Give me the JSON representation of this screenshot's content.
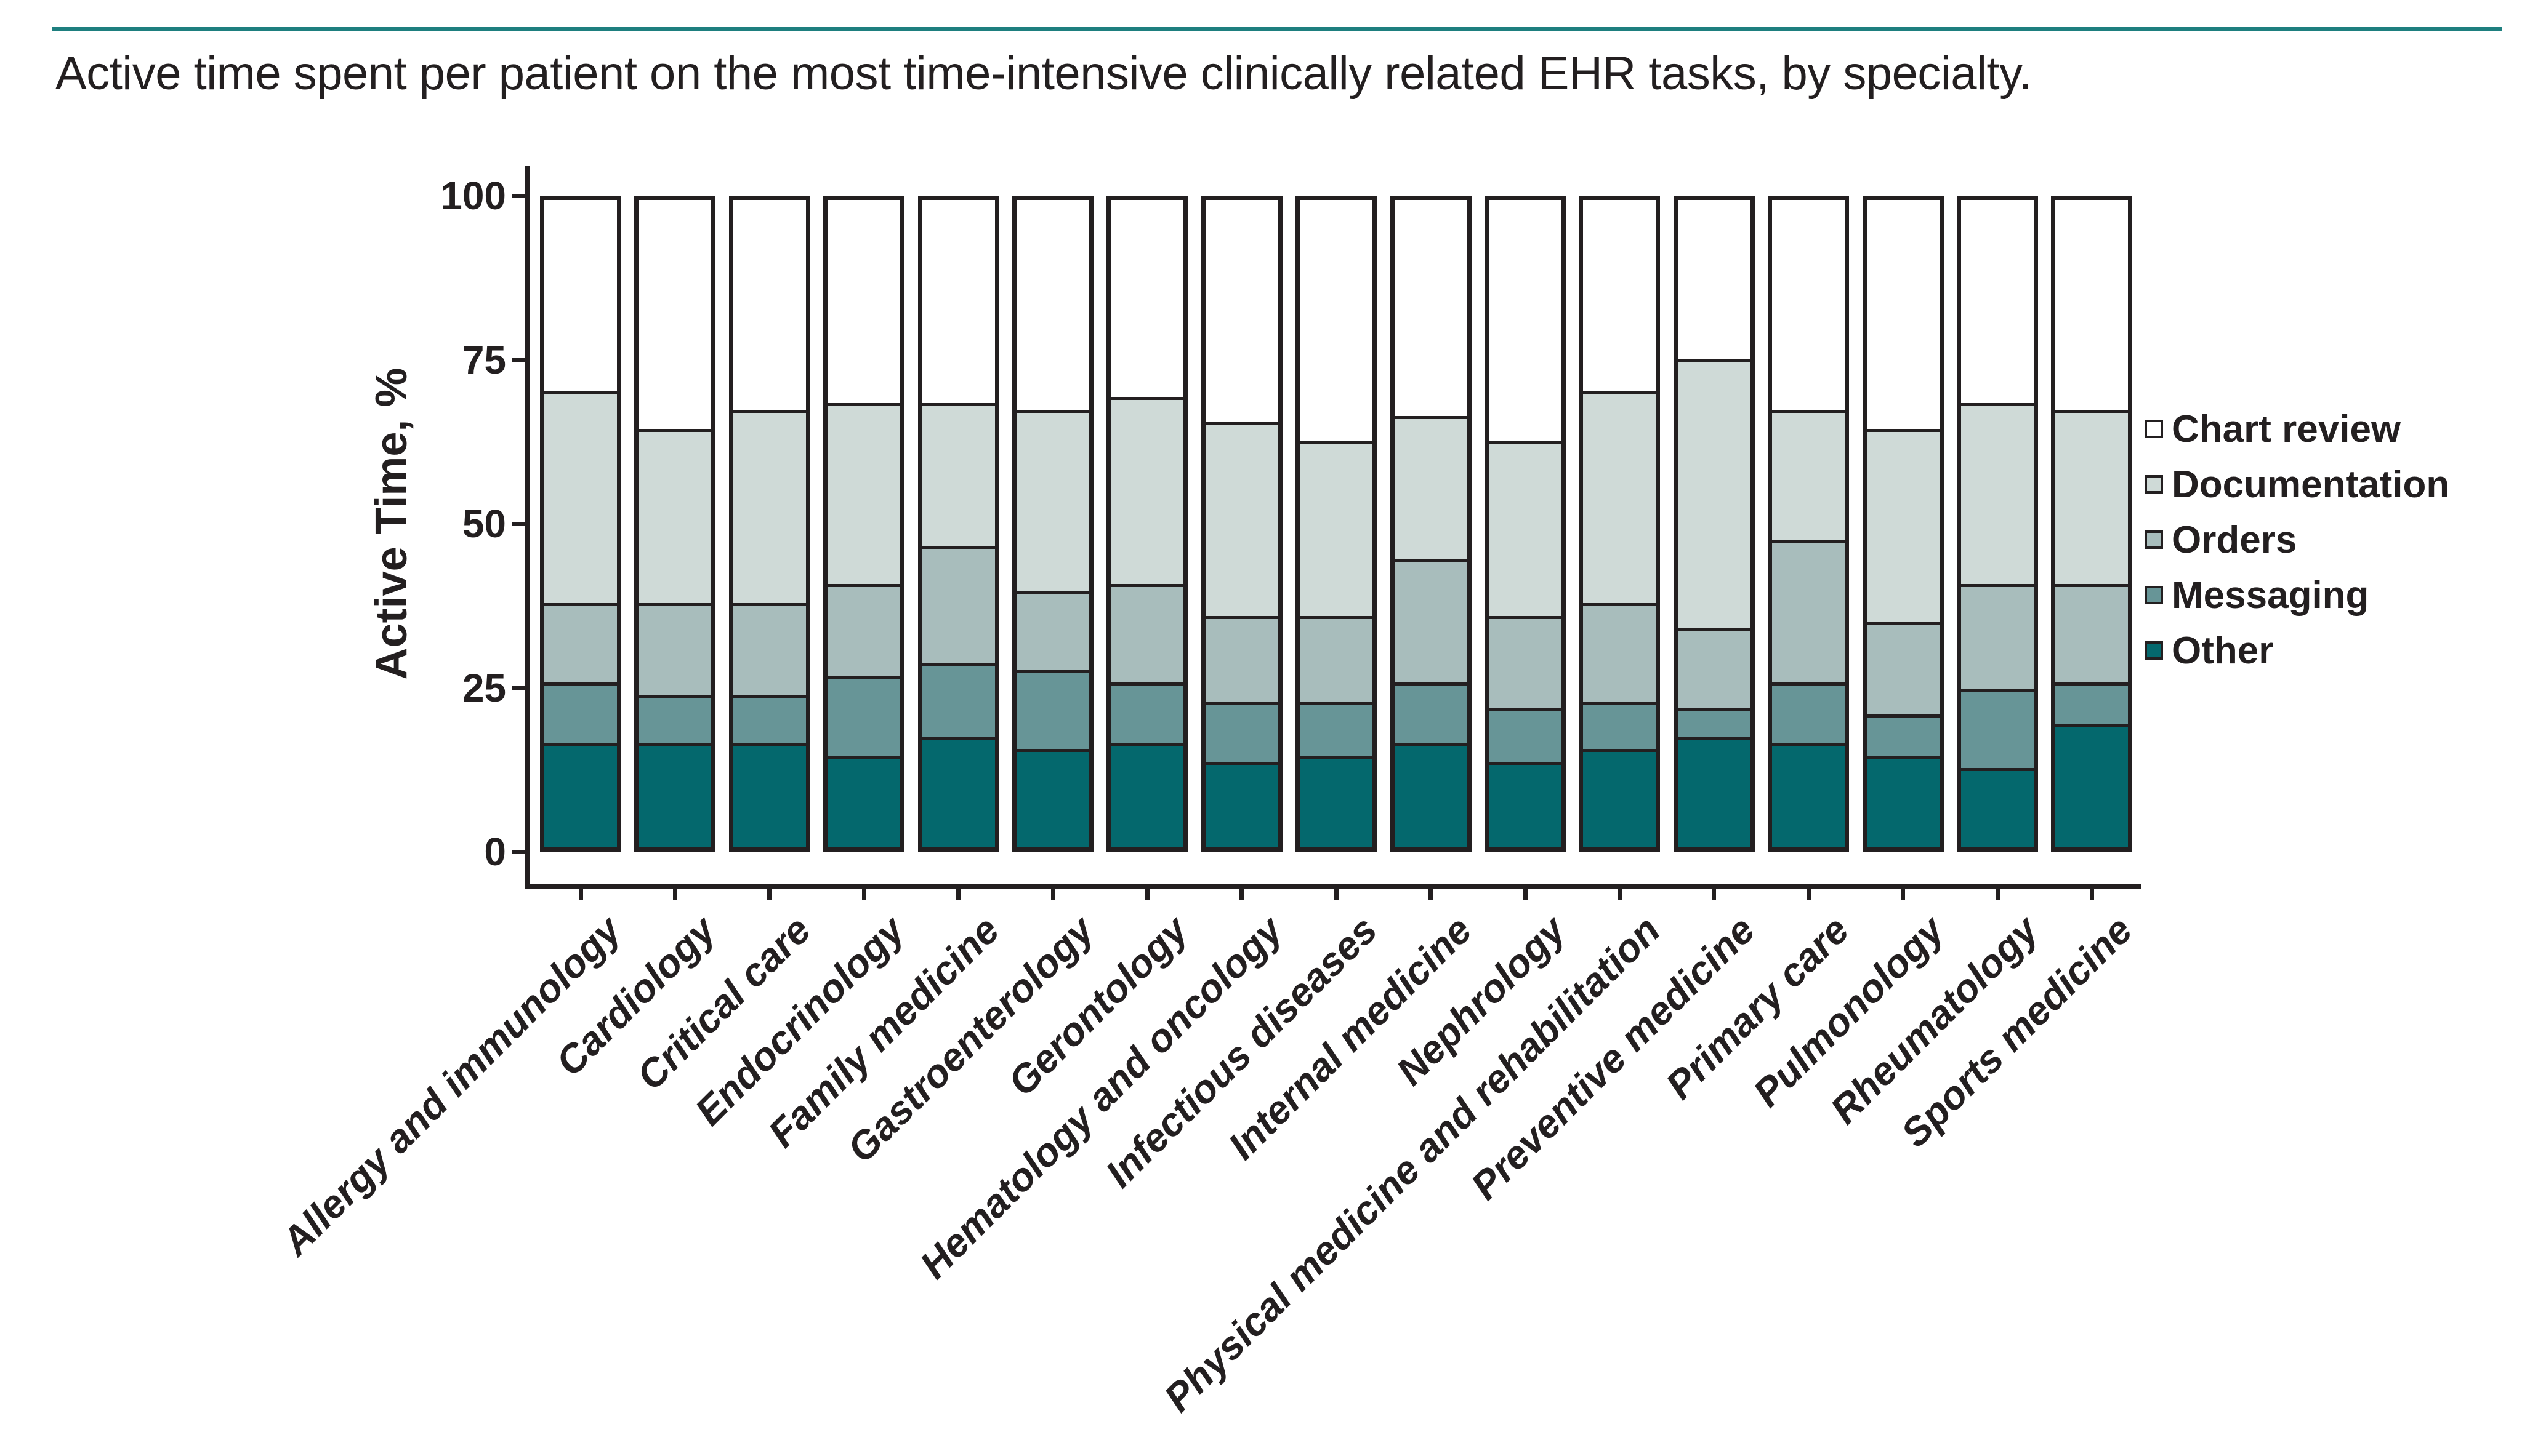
{
  "figure": {
    "title": "Active time spent per patient on the most time-intensive clinically related EHR tasks, by specialty.",
    "accent_rule_color": "#1E7F7F",
    "text_color": "#231F20"
  },
  "chart_data": {
    "type": "bar",
    "stacked": true,
    "title": "Active time spent per patient on the most time-intensive clinically related EHR tasks, by specialty.",
    "xlabel": "",
    "ylabel": "Active Time, %",
    "ylim": [
      0,
      100
    ],
    "yticks": [
      0,
      25,
      50,
      75,
      100
    ],
    "grid": false,
    "legend_position": "right",
    "legend_order_top_to_bottom": [
      "Chart review",
      "Documentation",
      "Orders",
      "Messaging",
      "Other"
    ],
    "categories": [
      "Allergy and immunology",
      "Cardiology",
      "Critical care",
      "Endocrinology",
      "Family medicine",
      "Gastroenterology",
      "Gerontology",
      "Hematology and oncology",
      "Infectious diseases",
      "Internal medicine",
      "Nephrology",
      "Physical medicine and rehabilitation",
      "Preventive medicine",
      "Primary care",
      "Pulmonology",
      "Rheumatology",
      "Sports medicine"
    ],
    "series": [
      {
        "name": "Other",
        "color": "#04686D",
        "values": [
          16,
          16,
          16,
          14,
          17,
          15,
          16,
          13,
          14,
          16,
          13,
          15,
          17,
          16,
          14,
          12,
          19
        ]
      },
      {
        "name": "Messaging",
        "color": "#679597",
        "values": [
          9,
          7,
          7,
          12,
          11,
          12,
          9,
          9,
          8,
          9,
          8,
          7,
          4,
          9,
          6,
          12,
          6
        ]
      },
      {
        "name": "Orders",
        "color": "#A8BDBC",
        "values": [
          12,
          14,
          14,
          14,
          18,
          12,
          15,
          13,
          13,
          19,
          14,
          15,
          12,
          22,
          14,
          16,
          15
        ]
      },
      {
        "name": "Documentation",
        "color": "#CFDAD7",
        "values": [
          33,
          27,
          30,
          28,
          22,
          28,
          29,
          30,
          27,
          22,
          27,
          33,
          42,
          20,
          30,
          28,
          27
        ]
      },
      {
        "name": "Chart review",
        "color": "#FFFFFF",
        "values": [
          30,
          36,
          33,
          32,
          32,
          33,
          31,
          35,
          38,
          34,
          38,
          30,
          25,
          33,
          36,
          32,
          33
        ]
      }
    ]
  }
}
